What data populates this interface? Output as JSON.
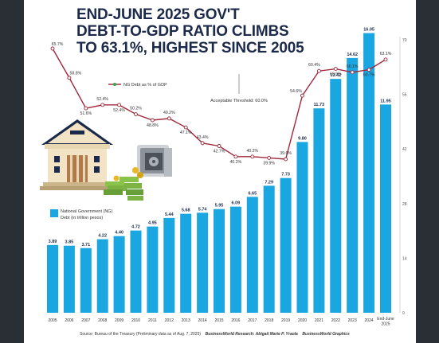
{
  "title_lines": [
    "END-JUNE 2025 GOV'T",
    "DEBT-TO-GDP RATIO CLIMBS",
    "TO 63.1%, HIGHEST SINCE 2005"
  ],
  "footer": {
    "source": "Source: Bureau of the Treasury (Preliminary data as of Aug. 7, 2025)",
    "research": "BusinessWorld Research: Abigail Marie P. Yraola",
    "graphics": "BusinessWorld Graphics"
  },
  "colors": {
    "bar": "#1aa6e0",
    "line": "#a0283c",
    "marker": "#ffffff",
    "navy": "#1b2a4a",
    "legend_dot": "#3aa64a"
  },
  "icons": [
    "bank-building-icon",
    "money-stack-icon",
    "safe-icon"
  ],
  "chart_data": {
    "type": "bar+line",
    "categories": [
      "2005",
      "2006",
      "2007",
      "2008",
      "2009",
      "2010",
      "2011",
      "2012",
      "2013",
      "2014",
      "2015",
      "2016",
      "2017",
      "2018",
      "2019",
      "2020",
      "2021",
      "2022",
      "2023",
      "2024",
      "End-June 2025"
    ],
    "series": [
      {
        "name": "National Government (NG) Debt (in trillion pesos)",
        "type": "bar",
        "values": [
          3.89,
          3.85,
          3.71,
          4.22,
          4.4,
          4.72,
          4.95,
          5.44,
          5.68,
          5.74,
          5.95,
          6.09,
          6.65,
          7.29,
          7.73,
          9.8,
          11.73,
          13.42,
          14.62,
          16.05,
          11.95
        ],
        "labels": [
          "3.89",
          "3.85",
          "3.71",
          "4.22",
          "4.40",
          "4.72",
          "4.95",
          "5.44",
          "5.68",
          "5.74",
          "5.95",
          "6.09",
          "6.65",
          "7.29",
          "7.73",
          "9.80",
          "11.73",
          "13.42",
          "14.62",
          "16.05",
          "11.95"
        ]
      },
      {
        "name": "NG Debt as % of GDP",
        "type": "line",
        "values": [
          65.7,
          58.8,
          51.6,
          52.4,
          52.4,
          50.2,
          48.8,
          49.2,
          47.1,
          43.4,
          42.7,
          40.2,
          40.2,
          39.9,
          39.6,
          54.6,
          60.4,
          60.9,
          60.1,
          60.7,
          63.1
        ],
        "labels": [
          "65.7%",
          "58.8%",
          "51.6%",
          "52.4%",
          "52.4%",
          "50.2%",
          "48.8%",
          "49.2%",
          "47.1%",
          "43.4%",
          "42.7%",
          "40.2%",
          "40.2%",
          "39.9%",
          "39.6%",
          "54.6%",
          "60.4%",
          "60.9%",
          "60.1%",
          "60.7%",
          "63.1%"
        ]
      }
    ],
    "threshold": {
      "value": 60.0,
      "label": "Acceptable Threshold: 60.0%"
    },
    "right_axis": {
      "ticks": [
        0,
        14,
        28,
        42,
        56,
        70
      ],
      "ylim": [
        0,
        70
      ]
    },
    "bar_ylim": [
      0,
      17.4
    ],
    "legend": {
      "line_label": "NG Debt as % of GDP",
      "bar_label_1": "National Government (NG)",
      "bar_label_2": "Debt (in trillion pesos)"
    }
  }
}
